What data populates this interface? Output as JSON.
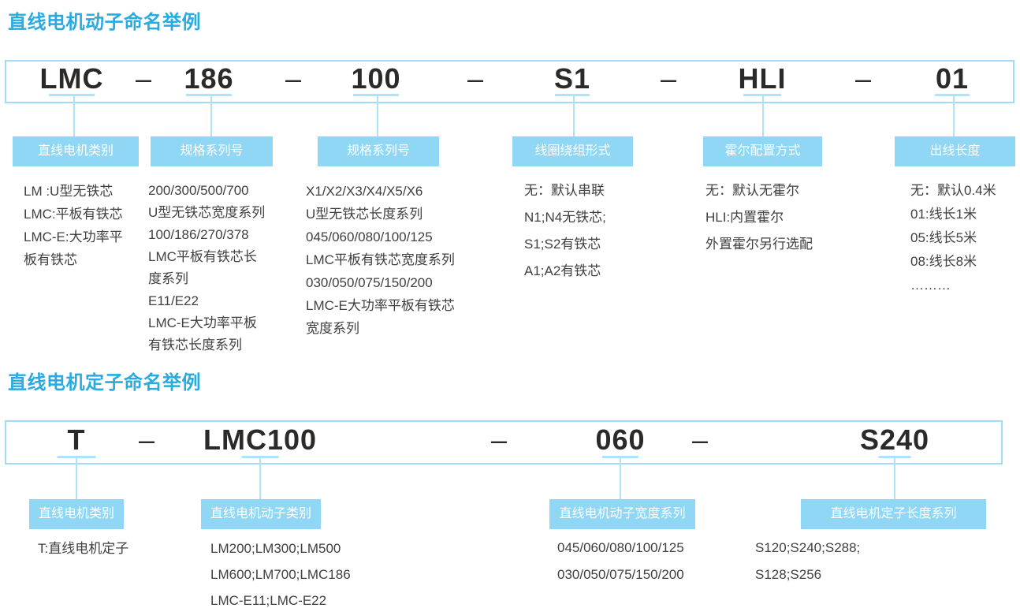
{
  "colors": {
    "title_blue": "#29ABE2",
    "label_box_bg": "#8FD7F4",
    "label_text": "#FFFFFF",
    "connector_blue": "#AEE3F8",
    "box_border_blue": "#9FDCF5",
    "code_text": "#2B2A29",
    "description_text": "#404040"
  },
  "separator": "–",
  "sections": [
    {
      "title": "直线电机动子命名举例",
      "code_parts": [
        "LMC",
        "186",
        "100",
        "S1",
        "HLI",
        "01"
      ],
      "labels": [
        "直线电机类别",
        "规格系列号",
        "规格系列号",
        "线圈绕组形式",
        "霍尔配置方式",
        "出线长度"
      ],
      "columns": [
        {
          "lines": [
            "LM :U型无铁芯",
            "LMC:平板有铁芯",
            "LMC-E:大功率平",
            "板有铁芯"
          ]
        },
        {
          "lines": [
            "200/300/500/700",
            "U型无铁芯宽度系列",
            "100/186/270/378",
            "LMC平板有铁芯长",
            "度系列",
            "E11/E22",
            "LMC-E大功率平板",
            "有铁芯长度系列"
          ]
        },
        {
          "lines": [
            "X1/X2/X3/X4/X5/X6",
            "U型无铁芯长度系列",
            "045/060/080/100/125",
            "LMC平板有铁芯宽度系列",
            "030/050/075/150/200",
            "LMC-E大功率平板有铁芯",
            "宽度系列"
          ]
        },
        {
          "lines": [
            "无：默认串联",
            "N1;N4无铁芯;",
            "S1;S2有铁芯",
            "A1;A2有铁芯"
          ]
        },
        {
          "lines": [
            "无：默认无霍尔",
            "HLI:内置霍尔",
            "外置霍尔另行选配"
          ]
        },
        {
          "lines": [
            "无：默认0.4米",
            "01:线长1米",
            "05:线长5米",
            "08:线长8米",
            "………"
          ]
        }
      ]
    },
    {
      "title": "直线电机定子命名举例",
      "code_parts": [
        "T",
        "LMC100",
        "060",
        "S240"
      ],
      "labels": [
        "直线电机类别",
        "直线电机动子类别",
        "直线电机动子宽度系列",
        "直线电机定子长度系列"
      ],
      "columns": [
        {
          "lines": [
            "T:直线电机定子"
          ]
        },
        {
          "lines": [
            "LM200;LM300;LM500",
            "LM600;LM700;LMC186",
            "LMC-E11;LMC-E22"
          ]
        },
        {
          "lines": [
            "045/060/080/100/125",
            "030/050/075/150/200"
          ]
        },
        {
          "lines": [
            "S120;S240;S288;",
            "S128;S256"
          ]
        }
      ]
    }
  ]
}
